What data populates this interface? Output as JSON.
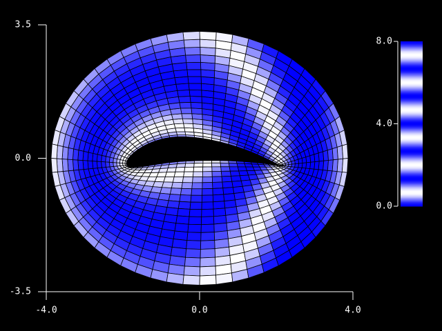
{
  "chart_data": {
    "type": "mesh",
    "xlim": [
      -4,
      4
    ],
    "ylim": [
      -3.5,
      3.5
    ],
    "xticks": [
      {
        "value": -4,
        "label": "-4.0"
      },
      {
        "value": 0,
        "label": "0.0"
      },
      {
        "value": 4,
        "label": "4.0"
      }
    ],
    "yticks": [
      {
        "value": -3.5,
        "label": "-3.5"
      },
      {
        "value": 0,
        "label": "0.0"
      },
      {
        "value": 3.5,
        "label": "3.5"
      }
    ],
    "colorbar": {
      "lim": [
        0,
        8
      ],
      "ticks": [
        {
          "value": 0,
          "label": "0.0"
        },
        {
          "value": 4,
          "label": "4.0"
        },
        {
          "value": 8,
          "label": "8.0"
        }
      ]
    }
  }
}
